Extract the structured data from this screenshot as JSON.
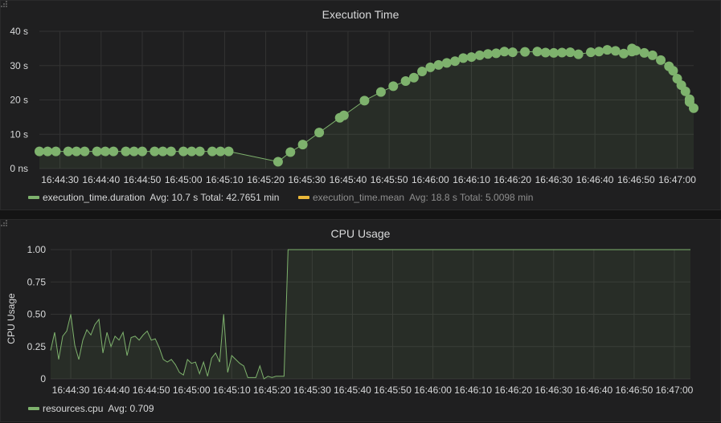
{
  "chart_data": [
    {
      "type": "scatter",
      "title": "Execution Time",
      "ylim": [
        0,
        40
      ],
      "y_ticks": [
        "0 ns",
        "10 s",
        "20 s",
        "30 s",
        "40 s"
      ],
      "y_tick_values": [
        0,
        10,
        20,
        30,
        40
      ],
      "x_ticks": [
        "16:44:30",
        "16:44:40",
        "16:44:50",
        "16:45:00",
        "16:45:10",
        "16:45:20",
        "16:45:30",
        "16:45:40",
        "16:45:50",
        "16:46:00",
        "16:46:10",
        "16:46:20",
        "16:46:30",
        "16:46:40",
        "16:46:50",
        "16:47:00"
      ],
      "x_range": [
        "16:44:25",
        "16:47:04"
      ],
      "grid": true,
      "series": [
        {
          "name": "execution_time.duration",
          "color": "#7eb26d",
          "points": [
            [
              "16:44:25",
              5
            ],
            [
              "16:44:27",
              5
            ],
            [
              "16:44:29",
              5
            ],
            [
              "16:44:32",
              5
            ],
            [
              "16:44:34",
              5
            ],
            [
              "16:44:36",
              5
            ],
            [
              "16:44:39",
              5
            ],
            [
              "16:44:41",
              5
            ],
            [
              "16:44:43",
              5
            ],
            [
              "16:44:46",
              5
            ],
            [
              "16:44:48",
              5
            ],
            [
              "16:44:50",
              5
            ],
            [
              "16:44:53",
              5
            ],
            [
              "16:44:55",
              5
            ],
            [
              "16:44:57",
              5
            ],
            [
              "16:45:00",
              5
            ],
            [
              "16:45:02",
              5
            ],
            [
              "16:45:04",
              5
            ],
            [
              "16:45:07",
              5
            ],
            [
              "16:45:09",
              5
            ],
            [
              "16:45:11",
              5
            ],
            [
              "16:45:23",
              2
            ],
            [
              "16:45:26",
              4.8
            ],
            [
              "16:45:29",
              7
            ],
            [
              "16:45:33",
              10.5
            ],
            [
              "16:45:38",
              14.8
            ],
            [
              "16:45:39",
              15.5
            ],
            [
              "16:45:44",
              19.8
            ],
            [
              "16:45:48",
              22.3
            ],
            [
              "16:45:51",
              24
            ],
            [
              "16:45:54",
              25.5
            ],
            [
              "16:45:56",
              26.5
            ],
            [
              "16:45:58",
              28.3
            ],
            [
              "16:46:00",
              29.5
            ],
            [
              "16:46:02",
              30.2
            ],
            [
              "16:46:04",
              30.8
            ],
            [
              "16:46:06",
              31.3
            ],
            [
              "16:46:08",
              32.2
            ],
            [
              "16:46:10",
              32.5
            ],
            [
              "16:46:12",
              33
            ],
            [
              "16:46:14",
              33.4
            ],
            [
              "16:46:16",
              33.6
            ],
            [
              "16:46:18",
              34.1
            ],
            [
              "16:46:20",
              33.9
            ],
            [
              "16:46:23",
              34
            ],
            [
              "16:46:26",
              34.1
            ],
            [
              "16:46:28",
              33.8
            ],
            [
              "16:46:30",
              33.7
            ],
            [
              "16:46:32",
              33.8
            ],
            [
              "16:46:34",
              33.9
            ],
            [
              "16:46:36",
              33.3
            ],
            [
              "16:46:39",
              33.9
            ],
            [
              "16:46:41",
              34.1
            ],
            [
              "16:46:43",
              34.6
            ],
            [
              "16:46:45",
              34.3
            ],
            [
              "16:46:47",
              33.5
            ],
            [
              "16:46:49",
              34.1
            ],
            [
              "16:46:49",
              35
            ],
            [
              "16:46:50",
              34.4
            ],
            [
              "16:46:52",
              33.7
            ],
            [
              "16:46:54",
              33
            ],
            [
              "16:46:56",
              31.6
            ],
            [
              "16:46:58",
              29.8
            ],
            [
              "16:46:59",
              28.5
            ],
            [
              "16:47:00",
              26.2
            ],
            [
              "16:47:01",
              24.3
            ],
            [
              "16:47:02",
              22.5
            ],
            [
              "16:47:03",
              20.2
            ],
            [
              "16:47:03",
              19.4
            ],
            [
              "16:47:04",
              17.6
            ]
          ]
        },
        {
          "name": "execution_time.mean",
          "color": "#eab839",
          "points": []
        }
      ],
      "legend": [
        {
          "name": "execution_time.duration",
          "stats": "Avg: 10.7 s  Total: 42.7651 min",
          "color": "#7eb26d"
        },
        {
          "name": "execution_time.mean",
          "stats": "Avg: 18.8 s  Total: 5.0098 min",
          "color": "#eab839"
        }
      ]
    },
    {
      "type": "line",
      "title": "CPU Usage",
      "ylabel": "CPU Usage",
      "ylim": [
        0,
        1
      ],
      "y_ticks": [
        "0",
        "0.25",
        "0.50",
        "0.75",
        "1.00"
      ],
      "y_tick_values": [
        0,
        0.25,
        0.5,
        0.75,
        1
      ],
      "x_ticks": [
        "16:44:30",
        "16:44:40",
        "16:44:50",
        "16:45:00",
        "16:45:10",
        "16:45:20",
        "16:45:30",
        "16:45:40",
        "16:45:50",
        "16:46:00",
        "16:46:10",
        "16:46:20",
        "16:46:30",
        "16:46:40",
        "16:46:50",
        "16:47:00"
      ],
      "x_range": [
        "16:44:25",
        "16:47:04"
      ],
      "grid": true,
      "series": [
        {
          "name": "resources.cpu",
          "color": "#7eb26d",
          "points": [
            [
              "16:44:25",
              0.22
            ],
            [
              "16:44:26",
              0.36
            ],
            [
              "16:44:27",
              0.15
            ],
            [
              "16:44:28",
              0.33
            ],
            [
              "16:44:29",
              0.37
            ],
            [
              "16:44:30",
              0.5
            ],
            [
              "16:44:31",
              0.26
            ],
            [
              "16:44:32",
              0.15
            ],
            [
              "16:44:33",
              0.3
            ],
            [
              "16:44:34",
              0.38
            ],
            [
              "16:44:35",
              0.34
            ],
            [
              "16:44:36",
              0.42
            ],
            [
              "16:44:37",
              0.46
            ],
            [
              "16:44:38",
              0.2
            ],
            [
              "16:44:39",
              0.36
            ],
            [
              "16:44:40",
              0.25
            ],
            [
              "16:44:41",
              0.33
            ],
            [
              "16:44:42",
              0.3
            ],
            [
              "16:44:43",
              0.36
            ],
            [
              "16:44:44",
              0.18
            ],
            [
              "16:44:45",
              0.32
            ],
            [
              "16:44:46",
              0.33
            ],
            [
              "16:44:47",
              0.3
            ],
            [
              "16:44:48",
              0.34
            ],
            [
              "16:44:49",
              0.37
            ],
            [
              "16:44:50",
              0.3
            ],
            [
              "16:44:51",
              0.31
            ],
            [
              "16:44:52",
              0.24
            ],
            [
              "16:44:53",
              0.15
            ],
            [
              "16:44:54",
              0.13
            ],
            [
              "16:44:55",
              0.15
            ],
            [
              "16:44:56",
              0.11
            ],
            [
              "16:44:57",
              0.05
            ],
            [
              "16:44:58",
              0.03
            ],
            [
              "16:44:59",
              0.15
            ],
            [
              "16:45:00",
              0.12
            ],
            [
              "16:45:01",
              0.13
            ],
            [
              "16:45:02",
              0.04
            ],
            [
              "16:45:03",
              0.13
            ],
            [
              "16:45:04",
              0.02
            ],
            [
              "16:45:05",
              0.16
            ],
            [
              "16:45:06",
              0.2
            ],
            [
              "16:45:07",
              0.13
            ],
            [
              "16:45:08",
              0.5
            ],
            [
              "16:45:09",
              0.05
            ],
            [
              "16:45:10",
              0.18
            ],
            [
              "16:45:11",
              0.15
            ],
            [
              "16:45:12",
              0.12
            ],
            [
              "16:45:13",
              0.1
            ],
            [
              "16:45:14",
              0.01
            ],
            [
              "16:45:15",
              0.01
            ],
            [
              "16:45:16",
              0.01
            ],
            [
              "16:45:17",
              0.1
            ],
            [
              "16:45:18",
              0.0
            ],
            [
              "16:45:19",
              0.02
            ],
            [
              "16:45:20",
              0.01
            ],
            [
              "16:45:21",
              0.02
            ],
            [
              "16:45:22",
              0.02
            ],
            [
              "16:45:23",
              0.02
            ],
            [
              "16:45:24",
              1.0
            ],
            [
              "16:45:30",
              1.0
            ],
            [
              "16:46:00",
              1.0
            ],
            [
              "16:46:30",
              1.0
            ],
            [
              "16:47:04",
              1.0
            ]
          ]
        }
      ],
      "legend": [
        {
          "name": "resources.cpu",
          "stats": "Avg: 0.709",
          "color": "#7eb26d"
        }
      ]
    }
  ]
}
